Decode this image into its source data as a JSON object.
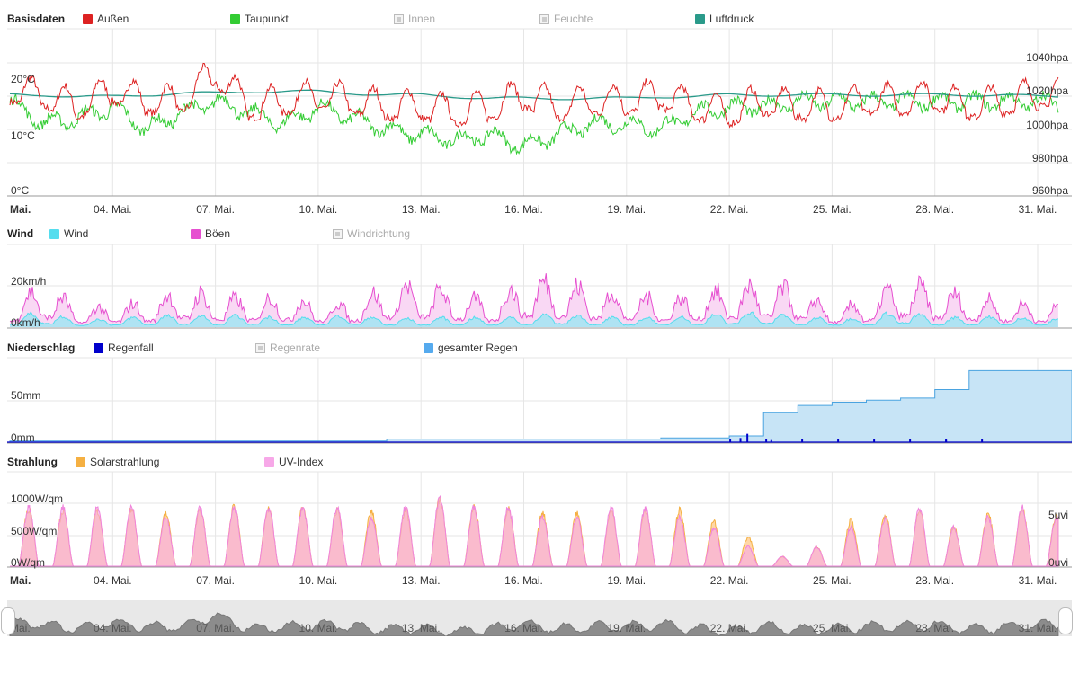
{
  "basisdaten": {
    "title": "Basisdaten",
    "legend": [
      {
        "label": "Außen",
        "color": "#dd2222",
        "enabled": true
      },
      {
        "label": "Taupunkt",
        "color": "#33cc33",
        "enabled": true
      },
      {
        "label": "Innen",
        "color": "#bbbbbb",
        "enabled": false
      },
      {
        "label": "Feuchte",
        "color": "#bbbbbb",
        "enabled": false
      },
      {
        "label": "Luftdruck",
        "color": "#2a9a8a",
        "enabled": true
      }
    ],
    "y_left_ticks": [
      "20°C",
      "10°C",
      "0°C"
    ],
    "y_right_ticks": [
      "1040hpa",
      "1020hpa",
      "1000hpa",
      "980hpa",
      "960hpa"
    ]
  },
  "wind": {
    "title": "Wind",
    "legend": [
      {
        "label": "Wind",
        "color": "#55ddee",
        "enabled": true
      },
      {
        "label": "Böen",
        "color": "#e64fd0",
        "enabled": true
      },
      {
        "label": "Windrichtung",
        "color": "#bbbbbb",
        "enabled": false
      }
    ],
    "y_ticks": [
      "20km/h",
      "0km/h"
    ]
  },
  "niederschlag": {
    "title": "Niederschlag",
    "legend": [
      {
        "label": "Regenfall",
        "color": "#0000cc",
        "enabled": true
      },
      {
        "label": "Regenrate",
        "color": "#bbbbbb",
        "enabled": false
      },
      {
        "label": "gesamter Regen",
        "color": "#55aaee",
        "enabled": true
      }
    ],
    "y_ticks": [
      "50mm",
      "0mm"
    ]
  },
  "strahlung": {
    "title": "Strahlung",
    "legend": [
      {
        "label": "Solarstrahlung",
        "color": "#f5b042",
        "enabled": true
      },
      {
        "label": "UV-Index",
        "color": "#f7a8e8",
        "enabled": true
      }
    ],
    "y_left_ticks": [
      "1000W/qm",
      "500W/qm",
      "0W/qm"
    ],
    "y_right_ticks": [
      "5uvi",
      "0uvi"
    ]
  },
  "x_axis": {
    "first_label": "Mai.",
    "labels": [
      "04. Mai.",
      "07. Mai.",
      "10. Mai.",
      "13. Mai.",
      "16. Mai.",
      "19. Mai.",
      "22. Mai.",
      "25. Mai.",
      "28. Mai.",
      "31. Mai."
    ]
  },
  "navigator": {
    "labels": [
      "Mai.",
      "04. Mai.",
      "07. Mai.",
      "10. Mai.",
      "13. Mai.",
      "16. Mai.",
      "19. Mai.",
      "22. Mai.",
      "25. Mai.",
      "28. Mai.",
      "31. Mai."
    ]
  },
  "chart_data": [
    {
      "type": "line",
      "title": "Basisdaten",
      "x_range": [
        "01. Mai.",
        "31. Mai."
      ],
      "series": [
        {
          "name": "Außen",
          "unit": "°C",
          "daily_max": [
            21,
            20,
            18,
            21,
            19,
            19,
            24,
            18,
            19,
            20,
            19,
            18,
            18,
            17,
            18,
            20,
            18,
            19,
            19,
            20,
            18,
            17,
            19,
            18,
            18,
            19,
            19,
            20,
            18,
            19,
            20
          ]
        },
        {
          "name": "Taupunkt",
          "unit": "°C",
          "daily_mean": [
            16,
            12,
            13,
            15,
            11,
            14,
            16,
            14,
            12,
            15,
            13,
            11,
            10,
            9,
            10,
            8,
            10,
            12,
            12,
            11,
            14,
            15,
            15,
            16,
            16,
            16,
            16,
            16,
            16,
            16,
            16
          ]
        },
        {
          "name": "Luftdruck",
          "unit": "hpa",
          "daily_mean": [
            1016,
            1016,
            1015,
            1015,
            1016,
            1017,
            1017,
            1018,
            1018,
            1018,
            1017,
            1016,
            1016,
            1015,
            1014,
            1014,
            1014,
            1014,
            1014,
            1015,
            1015,
            1016,
            1016,
            1016,
            1016,
            1016,
            1016,
            1016,
            1016,
            1016,
            1015
          ]
        }
      ],
      "y_left_range": [
        0,
        30
      ],
      "y_right_range": [
        960,
        1060
      ]
    },
    {
      "type": "area",
      "title": "Wind",
      "series": [
        {
          "name": "Wind",
          "unit": "km/h",
          "daily_max": [
            6,
            9,
            4,
            5,
            6,
            7,
            6,
            7,
            5,
            6,
            7,
            5,
            5,
            6,
            5,
            6,
            8,
            6,
            5,
            6,
            6,
            8,
            9,
            6,
            5,
            5,
            10,
            5,
            6,
            6,
            5
          ]
        },
        {
          "name": "Böen",
          "unit": "km/h",
          "daily_max": [
            15,
            28,
            12,
            14,
            16,
            24,
            20,
            18,
            20,
            15,
            16,
            26,
            28,
            22,
            16,
            30,
            30,
            24,
            22,
            18,
            20,
            26,
            28,
            24,
            12,
            16,
            30,
            24,
            20,
            16,
            14
          ]
        }
      ],
      "y_range": [
        0,
        35
      ]
    },
    {
      "type": "area",
      "title": "Niederschlag",
      "series": [
        {
          "name": "gesamter Regen",
          "unit": "mm",
          "cumulative": [
            1,
            1,
            1,
            1,
            1,
            1,
            1,
            1,
            1,
            1,
            1,
            3,
            3,
            3,
            3,
            3,
            3,
            3,
            3,
            4,
            4,
            6,
            28,
            35,
            38,
            40,
            42,
            50,
            68,
            68,
            68
          ]
        },
        {
          "name": "Regenfall",
          "unit": "mm",
          "events": [
            {
              "day": 22.3,
              "value": 4
            },
            {
              "day": 22.5,
              "value": 8
            },
            {
              "day": 23.2,
              "value": 2
            },
            {
              "day": 28.3,
              "value": 2
            }
          ]
        }
      ],
      "y_range": [
        0,
        80
      ]
    },
    {
      "type": "area",
      "title": "Strahlung",
      "series": [
        {
          "name": "Solarstrahlung",
          "unit": "W/qm",
          "daily_peak": [
            900,
            870,
            860,
            900,
            820,
            900,
            950,
            890,
            920,
            880,
            860,
            880,
            1050,
            930,
            900,
            830,
            840,
            860,
            880,
            880,
            700,
            450,
            150,
            300,
            720,
            800,
            880,
            620,
            820,
            900,
            800
          ]
        },
        {
          "name": "UV-Index",
          "unit": "uvi",
          "daily_peak": [
            6,
            6,
            6,
            6,
            5,
            6,
            6,
            6,
            6,
            6,
            5,
            6,
            7,
            6,
            6,
            5,
            5,
            6,
            6,
            5,
            4,
            2,
            1,
            2,
            4,
            5,
            6,
            4,
            5,
            6,
            5
          ]
        }
      ],
      "y_left_range": [
        0,
        1100
      ],
      "y_right_range": [
        0,
        6.5
      ]
    }
  ]
}
